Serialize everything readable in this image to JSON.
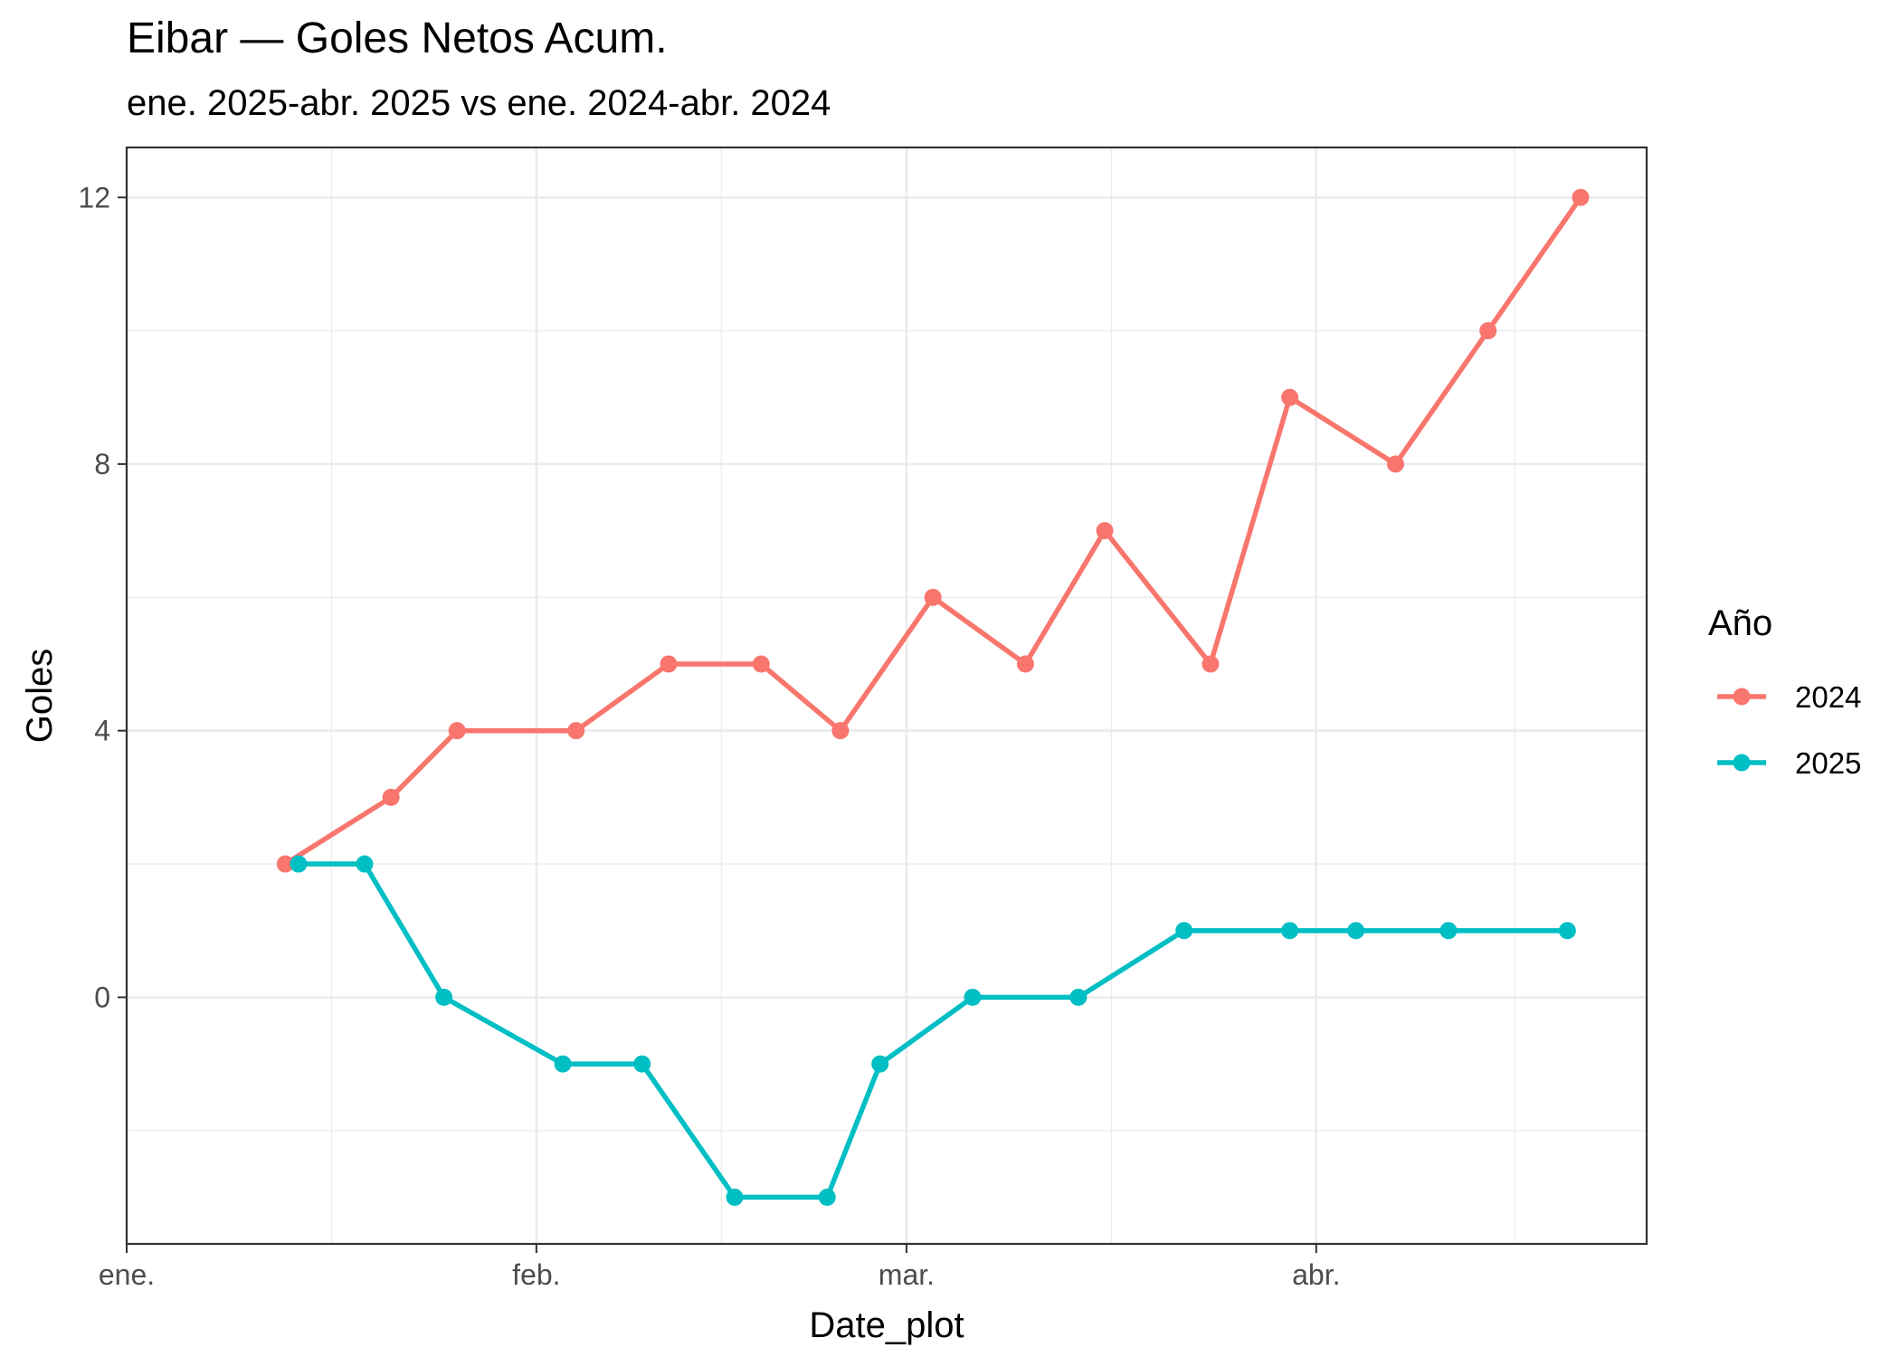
{
  "title": "Eibar — Goles Netos Acum.",
  "subtitle": "ene. 2025-abr. 2025 vs ene. 2024-abr. 2024",
  "chart_data": {
    "type": "line",
    "xlabel": "Date_plot",
    "ylabel": "Goles",
    "x_ticks": [
      "ene.",
      "feb.",
      "mar.",
      "abr."
    ],
    "y_ticks": [
      0,
      4,
      8,
      12
    ],
    "xlim": [
      "2025-01-01",
      "2025-04-26"
    ],
    "ylim": [
      -3.7,
      12.75
    ],
    "grid": true,
    "legend": {
      "title": "Año",
      "placement": "right"
    },
    "series": [
      {
        "name": "2024",
        "color": "#F8766D",
        "points": [
          {
            "x": "2025-01-13",
            "y": 2
          },
          {
            "x": "2025-01-21",
            "y": 3
          },
          {
            "x": "2025-01-26",
            "y": 4
          },
          {
            "x": "2025-02-04",
            "y": 4
          },
          {
            "x": "2025-02-11",
            "y": 5
          },
          {
            "x": "2025-02-18",
            "y": 5
          },
          {
            "x": "2025-02-24",
            "y": 4
          },
          {
            "x": "2025-03-03",
            "y": 6
          },
          {
            "x": "2025-03-10",
            "y": 5
          },
          {
            "x": "2025-03-16",
            "y": 7
          },
          {
            "x": "2025-03-24",
            "y": 5
          },
          {
            "x": "2025-03-30",
            "y": 9
          },
          {
            "x": "2025-04-07",
            "y": 8
          },
          {
            "x": "2025-04-14",
            "y": 10
          },
          {
            "x": "2025-04-21",
            "y": 12
          }
        ]
      },
      {
        "name": "2025",
        "color": "#00BFC4",
        "points": [
          {
            "x": "2025-01-14",
            "y": 2
          },
          {
            "x": "2025-01-19",
            "y": 2
          },
          {
            "x": "2025-01-25",
            "y": 0
          },
          {
            "x": "2025-02-03",
            "y": -1
          },
          {
            "x": "2025-02-09",
            "y": -1
          },
          {
            "x": "2025-02-16",
            "y": -3
          },
          {
            "x": "2025-02-23",
            "y": -3
          },
          {
            "x": "2025-02-27",
            "y": -1
          },
          {
            "x": "2025-03-06",
            "y": 0
          },
          {
            "x": "2025-03-14",
            "y": 0
          },
          {
            "x": "2025-03-22",
            "y": 1
          },
          {
            "x": "2025-03-30",
            "y": 1
          },
          {
            "x": "2025-04-04",
            "y": 1
          },
          {
            "x": "2025-04-11",
            "y": 1
          },
          {
            "x": "2025-04-20",
            "y": 1
          }
        ]
      }
    ]
  }
}
